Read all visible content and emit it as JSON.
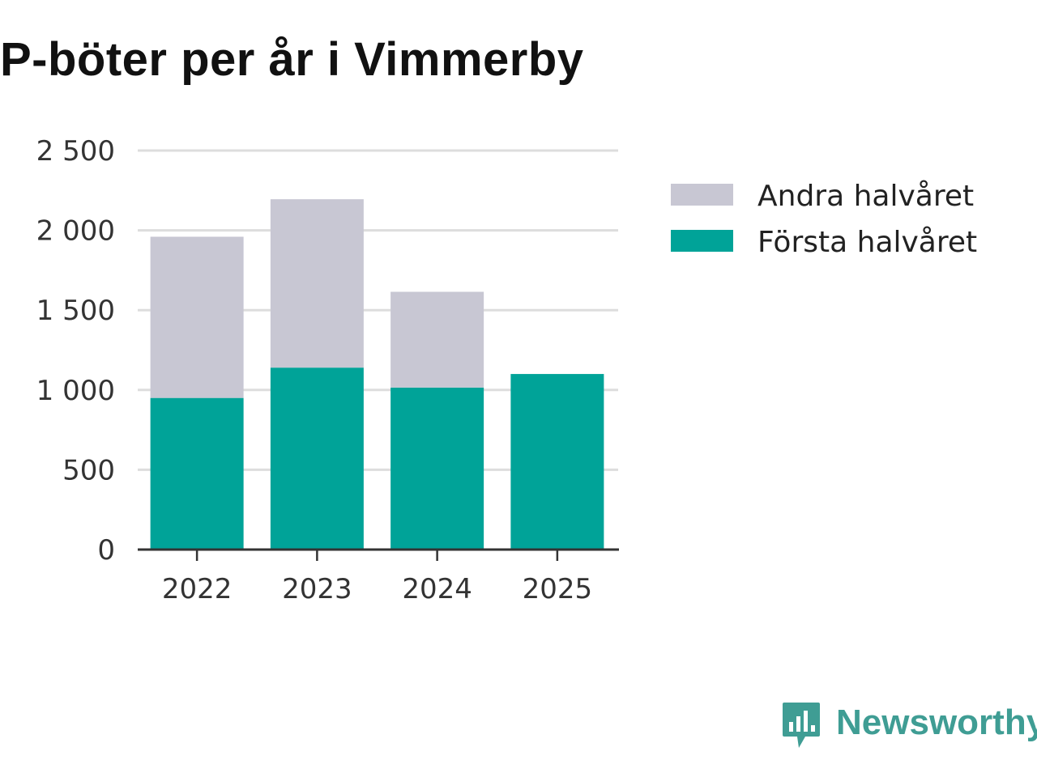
{
  "title": "P-böter per år i Vimmerby",
  "brand": {
    "name": "Newsworthy",
    "color": "#3f9d94"
  },
  "chart_data": {
    "type": "bar",
    "stacked": true,
    "title": "P-böter per år i Vimmerby",
    "xlabel": "",
    "ylabel": "",
    "categories": [
      "2022",
      "2023",
      "2024",
      "2025"
    ],
    "ylim": [
      0,
      2500
    ],
    "yticks": [
      0,
      500,
      1000,
      1500,
      2000,
      2500
    ],
    "ytick_labels": [
      "0",
      "500",
      "1 000",
      "1 500",
      "2 000",
      "2 500"
    ],
    "grid": true,
    "legend_position": "right",
    "series": [
      {
        "name": "Första halvåret",
        "color": "#00a398",
        "values": [
          950,
          1140,
          1015,
          1100
        ]
      },
      {
        "name": "Andra halvåret",
        "color": "#c8c7d3",
        "values": [
          1010,
          1055,
          600,
          0
        ]
      }
    ],
    "legend_order": [
      "Andra halvåret",
      "Första halvåret"
    ]
  }
}
